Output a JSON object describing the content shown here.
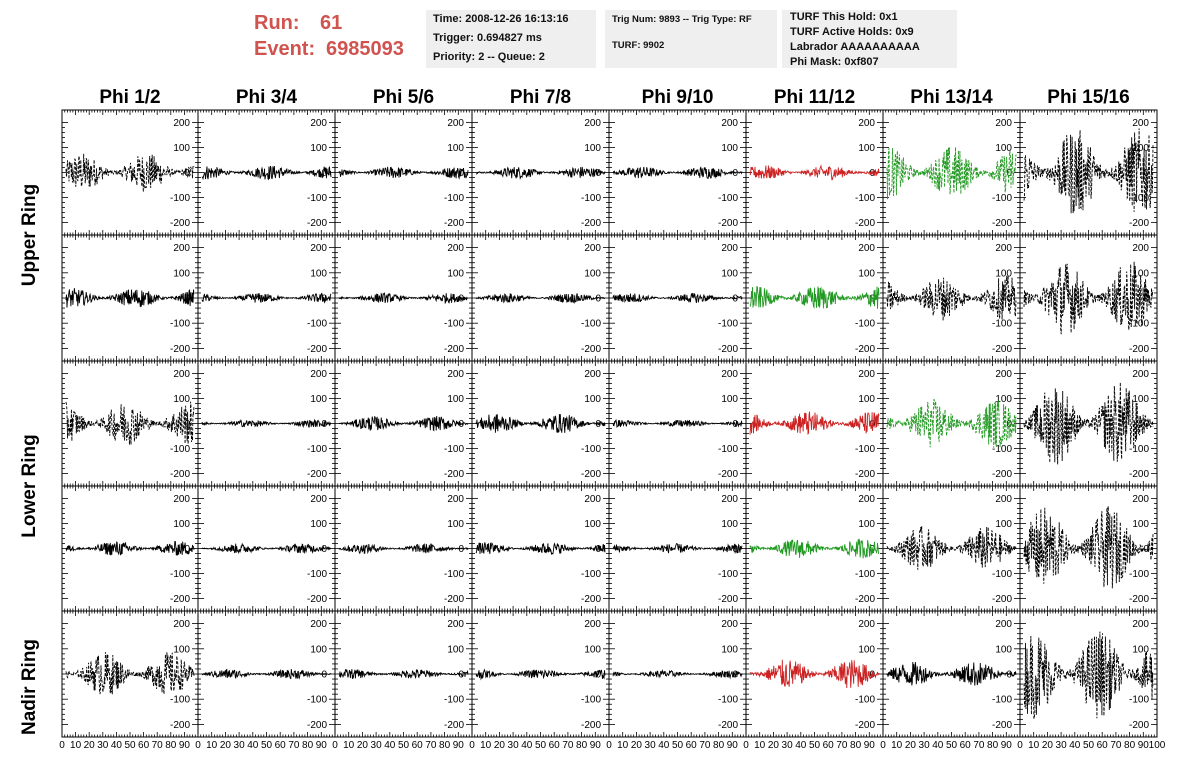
{
  "run": {
    "run_label": "Run:",
    "run_value": "61",
    "event_label": "Event:",
    "event_value": "6985093"
  },
  "info_box_1": {
    "time": "Time: 2008-12-26 16:13:16",
    "trigger": "Trigger: 0.694827 ms",
    "priority": "Priority: 2 -- Queue: 2"
  },
  "info_box_2": {
    "trig": "Trig Num: 9893 -- Trig Type: RF",
    "turf": "TURF: 9902"
  },
  "info_box_3": {
    "hold": "TURF This Hold: 0x1",
    "active": "TURF Active Holds: 0x9",
    "labrador": "Labrador AAAAAAAAAA",
    "phimask": "Phi Mask: 0xf807"
  },
  "columns": [
    "Phi 1/2",
    "Phi 3/4",
    "Phi 5/6",
    "Phi 7/8",
    "Phi 9/10",
    "Phi 11/12",
    "Phi 13/14",
    "Phi 15/16"
  ],
  "row_labels": {
    "upper": "Upper Ring",
    "lower": "Lower Ring",
    "nadir": "Nadir Ring"
  },
  "colors": {
    "black": "#000000",
    "red": "#cc2222",
    "green": "#229922",
    "title_red": "#d0534f"
  },
  "chart_data": {
    "type": "line",
    "y_ticks": [
      "200",
      "100",
      "0",
      "-100",
      "-200"
    ],
    "y_tick_values": [
      200,
      100,
      0,
      -100,
      -200
    ],
    "x_ticks": [
      "0",
      "10",
      "20",
      "30",
      "40",
      "50",
      "60",
      "70",
      "80",
      "90",
      "100"
    ],
    "x_tick_values": [
      0,
      10,
      20,
      30,
      40,
      50,
      60,
      70,
      80,
      90,
      100
    ],
    "xlim": [
      0,
      100
    ],
    "ylim": [
      -250,
      250
    ],
    "panel_color": [
      [
        "black",
        "black",
        "black",
        "black",
        "black",
        "red",
        "green",
        "black"
      ],
      [
        "black",
        "black",
        "black",
        "black",
        "black",
        "green",
        "black",
        "black"
      ],
      [
        "black",
        "black",
        "black",
        "black",
        "black",
        "red",
        "green",
        "black"
      ],
      [
        "black",
        "black",
        "black",
        "black",
        "black",
        "green",
        "black",
        "black"
      ],
      [
        "black",
        "black",
        "black",
        "black",
        "black",
        "red",
        "black",
        "black"
      ]
    ],
    "panel_amplitude": [
      [
        80,
        30,
        25,
        25,
        25,
        30,
        110,
        180
      ],
      [
        40,
        20,
        20,
        20,
        20,
        50,
        90,
        150
      ],
      [
        90,
        15,
        30,
        40,
        15,
        50,
        100,
        170
      ],
      [
        30,
        20,
        20,
        25,
        20,
        40,
        90,
        170
      ],
      [
        90,
        20,
        20,
        20,
        15,
        60,
        50,
        180
      ]
    ]
  }
}
